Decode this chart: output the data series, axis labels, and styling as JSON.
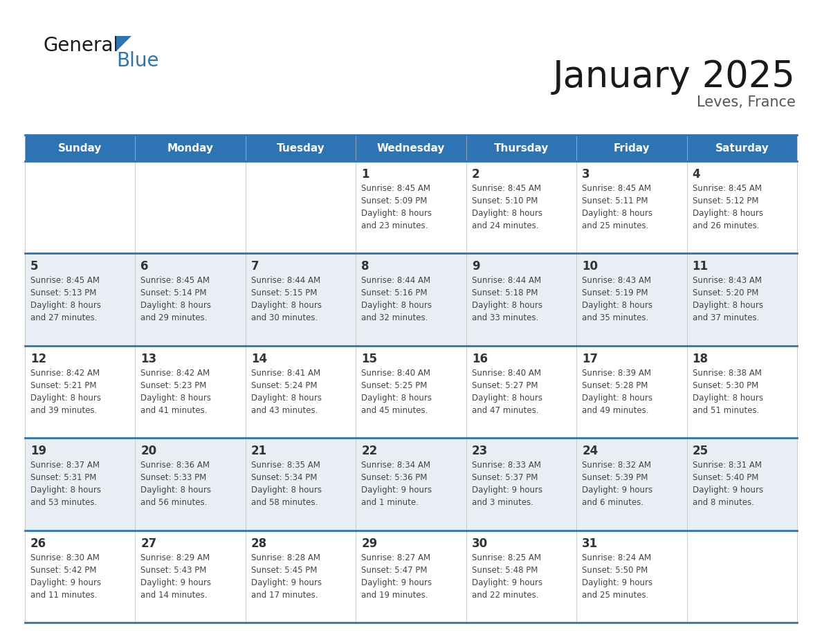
{
  "title": "January 2025",
  "subtitle": "Leves, France",
  "days_of_week": [
    "Sunday",
    "Monday",
    "Tuesday",
    "Wednesday",
    "Thursday",
    "Friday",
    "Saturday"
  ],
  "header_bg": "#2E74B5",
  "header_text": "#FFFFFF",
  "cell_bg_odd": "#FFFFFF",
  "cell_bg_even": "#E9EEF4",
  "border_color": "#2E74B5",
  "day_num_color": "#333333",
  "text_color": "#444444",
  "title_color": "#1a1a1a",
  "subtitle_color": "#555555",
  "calendar": [
    [
      {
        "day": null,
        "sunrise": null,
        "sunset": null,
        "daylight": null
      },
      {
        "day": null,
        "sunrise": null,
        "sunset": null,
        "daylight": null
      },
      {
        "day": null,
        "sunrise": null,
        "sunset": null,
        "daylight": null
      },
      {
        "day": 1,
        "sunrise": "8:45 AM",
        "sunset": "5:09 PM",
        "daylight": "8 hours and 23 minutes."
      },
      {
        "day": 2,
        "sunrise": "8:45 AM",
        "sunset": "5:10 PM",
        "daylight": "8 hours and 24 minutes."
      },
      {
        "day": 3,
        "sunrise": "8:45 AM",
        "sunset": "5:11 PM",
        "daylight": "8 hours and 25 minutes."
      },
      {
        "day": 4,
        "sunrise": "8:45 AM",
        "sunset": "5:12 PM",
        "daylight": "8 hours and 26 minutes."
      }
    ],
    [
      {
        "day": 5,
        "sunrise": "8:45 AM",
        "sunset": "5:13 PM",
        "daylight": "8 hours and 27 minutes."
      },
      {
        "day": 6,
        "sunrise": "8:45 AM",
        "sunset": "5:14 PM",
        "daylight": "8 hours and 29 minutes."
      },
      {
        "day": 7,
        "sunrise": "8:44 AM",
        "sunset": "5:15 PM",
        "daylight": "8 hours and 30 minutes."
      },
      {
        "day": 8,
        "sunrise": "8:44 AM",
        "sunset": "5:16 PM",
        "daylight": "8 hours and 32 minutes."
      },
      {
        "day": 9,
        "sunrise": "8:44 AM",
        "sunset": "5:18 PM",
        "daylight": "8 hours and 33 minutes."
      },
      {
        "day": 10,
        "sunrise": "8:43 AM",
        "sunset": "5:19 PM",
        "daylight": "8 hours and 35 minutes."
      },
      {
        "day": 11,
        "sunrise": "8:43 AM",
        "sunset": "5:20 PM",
        "daylight": "8 hours and 37 minutes."
      }
    ],
    [
      {
        "day": 12,
        "sunrise": "8:42 AM",
        "sunset": "5:21 PM",
        "daylight": "8 hours and 39 minutes."
      },
      {
        "day": 13,
        "sunrise": "8:42 AM",
        "sunset": "5:23 PM",
        "daylight": "8 hours and 41 minutes."
      },
      {
        "day": 14,
        "sunrise": "8:41 AM",
        "sunset": "5:24 PM",
        "daylight": "8 hours and 43 minutes."
      },
      {
        "day": 15,
        "sunrise": "8:40 AM",
        "sunset": "5:25 PM",
        "daylight": "8 hours and 45 minutes."
      },
      {
        "day": 16,
        "sunrise": "8:40 AM",
        "sunset": "5:27 PM",
        "daylight": "8 hours and 47 minutes."
      },
      {
        "day": 17,
        "sunrise": "8:39 AM",
        "sunset": "5:28 PM",
        "daylight": "8 hours and 49 minutes."
      },
      {
        "day": 18,
        "sunrise": "8:38 AM",
        "sunset": "5:30 PM",
        "daylight": "8 hours and 51 minutes."
      }
    ],
    [
      {
        "day": 19,
        "sunrise": "8:37 AM",
        "sunset": "5:31 PM",
        "daylight": "8 hours and 53 minutes."
      },
      {
        "day": 20,
        "sunrise": "8:36 AM",
        "sunset": "5:33 PM",
        "daylight": "8 hours and 56 minutes."
      },
      {
        "day": 21,
        "sunrise": "8:35 AM",
        "sunset": "5:34 PM",
        "daylight": "8 hours and 58 minutes."
      },
      {
        "day": 22,
        "sunrise": "8:34 AM",
        "sunset": "5:36 PM",
        "daylight": "9 hours and 1 minute."
      },
      {
        "day": 23,
        "sunrise": "8:33 AM",
        "sunset": "5:37 PM",
        "daylight": "9 hours and 3 minutes."
      },
      {
        "day": 24,
        "sunrise": "8:32 AM",
        "sunset": "5:39 PM",
        "daylight": "9 hours and 6 minutes."
      },
      {
        "day": 25,
        "sunrise": "8:31 AM",
        "sunset": "5:40 PM",
        "daylight": "9 hours and 8 minutes."
      }
    ],
    [
      {
        "day": 26,
        "sunrise": "8:30 AM",
        "sunset": "5:42 PM",
        "daylight": "9 hours and 11 minutes."
      },
      {
        "day": 27,
        "sunrise": "8:29 AM",
        "sunset": "5:43 PM",
        "daylight": "9 hours and 14 minutes."
      },
      {
        "day": 28,
        "sunrise": "8:28 AM",
        "sunset": "5:45 PM",
        "daylight": "9 hours and 17 minutes."
      },
      {
        "day": 29,
        "sunrise": "8:27 AM",
        "sunset": "5:47 PM",
        "daylight": "9 hours and 19 minutes."
      },
      {
        "day": 30,
        "sunrise": "8:25 AM",
        "sunset": "5:48 PM",
        "daylight": "9 hours and 22 minutes."
      },
      {
        "day": 31,
        "sunrise": "8:24 AM",
        "sunset": "5:50 PM",
        "daylight": "9 hours and 25 minutes."
      },
      {
        "day": null,
        "sunrise": null,
        "sunset": null,
        "daylight": null
      }
    ]
  ]
}
